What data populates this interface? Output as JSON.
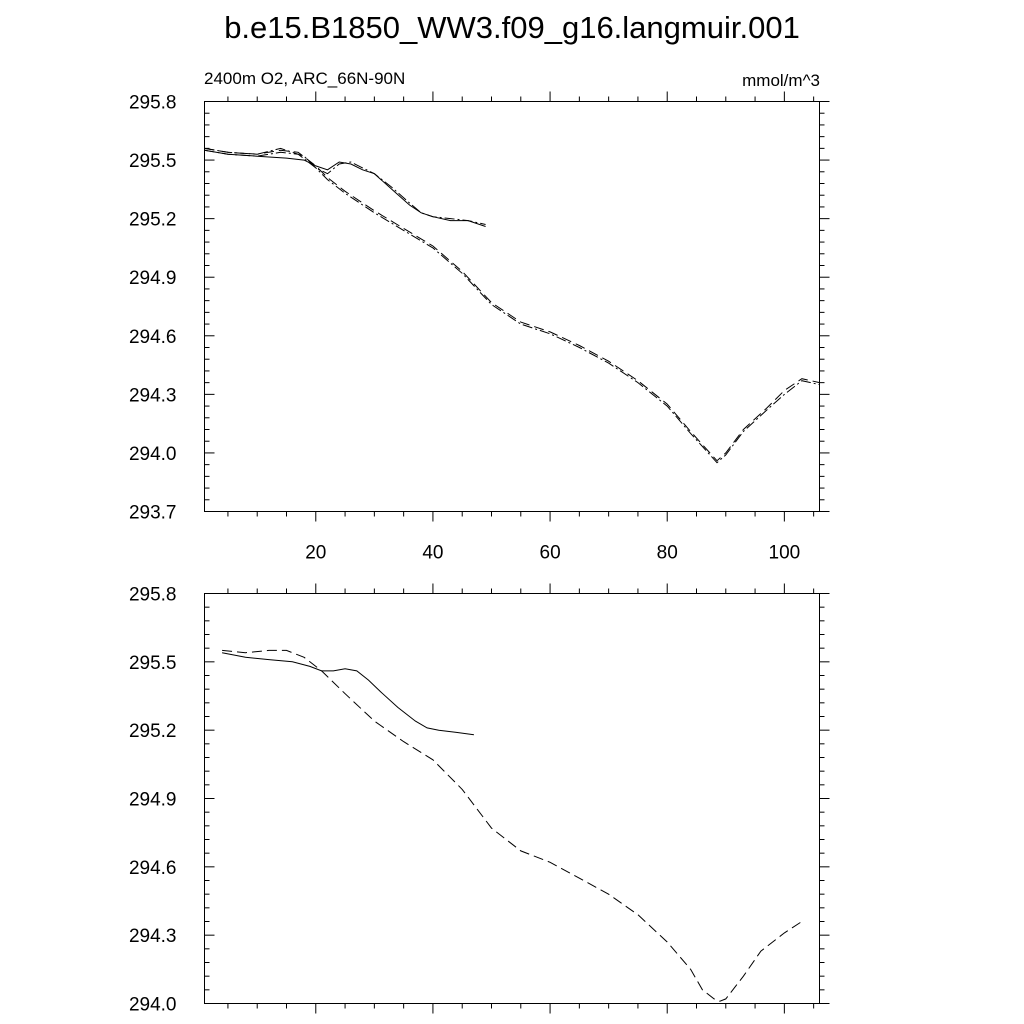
{
  "title": "b.e15.B1850_WW3.f09_g16.langmuir.001",
  "chart_data": [
    {
      "type": "line",
      "left_label": "2400m O2, ARC_66N-90N",
      "right_label": "mmol/m^3",
      "xlim": [
        1,
        106
      ],
      "ylim": [
        293.7,
        295.8
      ],
      "yticks": [
        "295.8",
        "295.5",
        "295.2",
        "294.9",
        "294.6",
        "294.3",
        "294.0",
        "293.7"
      ],
      "xticks": [
        "20",
        "40",
        "60",
        "80",
        "100"
      ],
      "show_xtick_labels": true,
      "grid": false,
      "series": [
        {
          "style": "solid",
          "x": [
            1,
            5,
            10,
            15,
            18,
            20,
            22,
            24,
            26,
            28,
            30,
            33,
            36,
            38,
            40,
            43,
            46,
            49
          ],
          "y": [
            295.55,
            295.53,
            295.52,
            295.51,
            295.5,
            295.47,
            295.45,
            295.49,
            295.48,
            295.45,
            295.43,
            295.35,
            295.27,
            295.23,
            295.21,
            295.19,
            295.19,
            295.16
          ]
        },
        {
          "style": "dash-dot",
          "x": [
            1,
            5,
            10,
            14,
            18,
            20,
            22,
            24,
            26,
            28,
            30,
            33,
            36,
            38,
            40,
            43,
            46,
            49
          ],
          "y": [
            295.56,
            295.54,
            295.53,
            295.56,
            295.52,
            295.46,
            295.43,
            295.48,
            295.49,
            295.46,
            295.43,
            295.36,
            295.28,
            295.23,
            295.21,
            295.2,
            295.19,
            295.17
          ]
        },
        {
          "style": "dash",
          "x": [
            1,
            5,
            10,
            14,
            17,
            20,
            22,
            25,
            30,
            35,
            40,
            45,
            50,
            55,
            60,
            65,
            70,
            75,
            80,
            84,
            87,
            88.5,
            90,
            93,
            97,
            100,
            103,
            106
          ],
          "y": [
            295.56,
            295.54,
            295.53,
            295.55,
            295.54,
            295.47,
            295.41,
            295.34,
            295.24,
            295.15,
            295.06,
            294.93,
            294.77,
            294.67,
            294.62,
            294.55,
            294.47,
            294.37,
            294.25,
            294.11,
            294.01,
            293.96,
            294.0,
            294.12,
            294.23,
            294.32,
            294.38,
            294.36
          ]
        },
        {
          "style": "dash-dot",
          "x": [
            1,
            5,
            10,
            14,
            17,
            20,
            22,
            25,
            30,
            35,
            40,
            45,
            50,
            55,
            60,
            65,
            70,
            75,
            80,
            84,
            87,
            88.5,
            90,
            93,
            97,
            100,
            103,
            106
          ],
          "y": [
            295.55,
            295.53,
            295.52,
            295.54,
            295.53,
            295.46,
            295.4,
            295.33,
            295.23,
            295.14,
            295.05,
            294.92,
            294.76,
            294.66,
            294.61,
            294.54,
            294.46,
            294.36,
            294.24,
            294.1,
            294.0,
            293.95,
            293.99,
            294.11,
            294.22,
            294.3,
            294.37,
            294.35
          ]
        }
      ]
    },
    {
      "type": "line",
      "xlim": [
        1,
        106
      ],
      "ylim": [
        294.0,
        295.8
      ],
      "yticks": [
        "295.8",
        "295.5",
        "295.2",
        "294.9",
        "294.6",
        "294.3",
        "294.0"
      ],
      "xticks": [
        "20",
        "40",
        "60",
        "80",
        "100"
      ],
      "show_xtick_labels": false,
      "grid": false,
      "series": [
        {
          "style": "solid",
          "x": [
            4,
            8,
            12,
            16,
            19,
            21,
            23,
            25,
            27,
            29,
            31,
            34,
            37,
            39,
            41,
            44,
            47
          ],
          "y": [
            295.54,
            295.52,
            295.51,
            295.5,
            295.48,
            295.46,
            295.46,
            295.47,
            295.46,
            295.42,
            295.37,
            295.3,
            295.24,
            295.21,
            295.2,
            295.19,
            295.18
          ]
        },
        {
          "style": "dash",
          "x": [
            4,
            8,
            12,
            15,
            18,
            21,
            25,
            30,
            35,
            40,
            45,
            50,
            55,
            60,
            65,
            70,
            75,
            80,
            84,
            86,
            88,
            89,
            90,
            93,
            96,
            100,
            103
          ],
          "y": [
            295.55,
            295.54,
            295.55,
            295.55,
            295.52,
            295.46,
            295.36,
            295.24,
            295.15,
            295.07,
            294.94,
            294.77,
            294.67,
            294.62,
            294.55,
            294.48,
            294.39,
            294.27,
            294.15,
            294.06,
            294.02,
            294.01,
            294.02,
            294.12,
            294.23,
            294.31,
            294.36
          ]
        }
      ]
    }
  ]
}
